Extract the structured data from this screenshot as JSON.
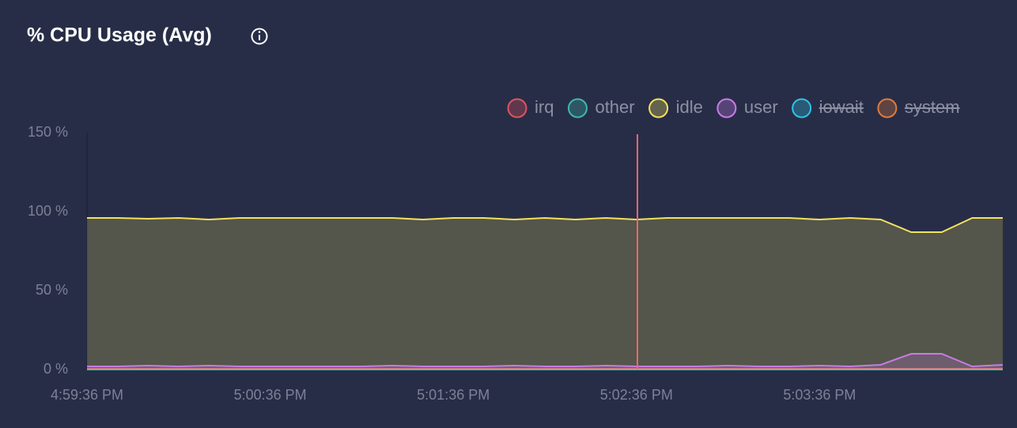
{
  "chart_data": {
    "type": "area",
    "title": "% CPU Usage (Avg)",
    "categories": [
      "4:59:36 PM",
      null,
      null,
      null,
      null,
      null,
      "5:00:36 PM",
      null,
      null,
      null,
      null,
      null,
      "5:01:36 PM",
      null,
      null,
      null,
      null,
      null,
      "5:02:36 PM",
      null,
      null,
      null,
      null,
      null,
      "5:03:36 PM",
      null,
      null,
      null,
      null,
      null,
      null
    ],
    "series": [
      {
        "name": "irq",
        "color": "#e0535f",
        "values": [
          0.5,
          0.5,
          0.5,
          0.5,
          0.5,
          0.5,
          0.5,
          0.5,
          0.5,
          0.5,
          0.5,
          0.5,
          0.5,
          0.5,
          0.5,
          0.5,
          0.5,
          0.5,
          0.5,
          0.5,
          0.5,
          0.5,
          0.5,
          0.5,
          0.5,
          0.5,
          0.5,
          0.5,
          0.5,
          0.5,
          0.5
        ]
      },
      {
        "name": "other",
        "color": "#3fb8a8",
        "values": [
          0,
          0,
          0,
          0,
          0,
          0,
          0,
          0,
          0,
          0,
          0,
          0,
          0,
          0,
          0,
          0,
          0,
          0,
          0,
          0,
          0,
          0,
          0,
          0,
          0,
          0,
          0,
          0,
          0,
          0,
          0
        ]
      },
      {
        "name": "idle",
        "color": "#f2e25c",
        "values": [
          96,
          96,
          95.5,
          96,
          95,
          96,
          96,
          96,
          96,
          96,
          96,
          95,
          96,
          96,
          95,
          96,
          95,
          96,
          95,
          96,
          96,
          96,
          96,
          96,
          95,
          96,
          95,
          87,
          87,
          96,
          96
        ]
      },
      {
        "name": "user",
        "color": "#c77ce6",
        "values": [
          2,
          2,
          2.5,
          2,
          2.5,
          2,
          2,
          2,
          2,
          2,
          2.5,
          2,
          2,
          2,
          2.5,
          2,
          2,
          2.5,
          2,
          2,
          2,
          2.5,
          2,
          2,
          2.5,
          2,
          3,
          10,
          10,
          2,
          3
        ]
      },
      {
        "name": "iowait",
        "color": "#2fc3e6",
        "hidden": true,
        "values": [
          null,
          null,
          null,
          null,
          null,
          null,
          null,
          null,
          null,
          null,
          null,
          null,
          null,
          null,
          null,
          null,
          null,
          null,
          null,
          null,
          null,
          null,
          null,
          null,
          null,
          null,
          null,
          null,
          null,
          null,
          null
        ]
      },
      {
        "name": "system",
        "color": "#e07a3c",
        "hidden": true,
        "values": [
          null,
          null,
          null,
          null,
          null,
          null,
          null,
          null,
          null,
          null,
          null,
          null,
          null,
          null,
          null,
          null,
          null,
          null,
          null,
          null,
          null,
          null,
          null,
          null,
          null,
          null,
          null,
          null,
          null,
          null,
          null
        ]
      }
    ],
    "ylim": [
      0,
      150
    ],
    "yticks": [
      {
        "value": 0,
        "label": "0 %"
      },
      {
        "value": 50,
        "label": "50 %"
      },
      {
        "value": 100,
        "label": "100 %"
      },
      {
        "value": 150,
        "label": "150 %"
      }
    ],
    "grid": false
  }
}
